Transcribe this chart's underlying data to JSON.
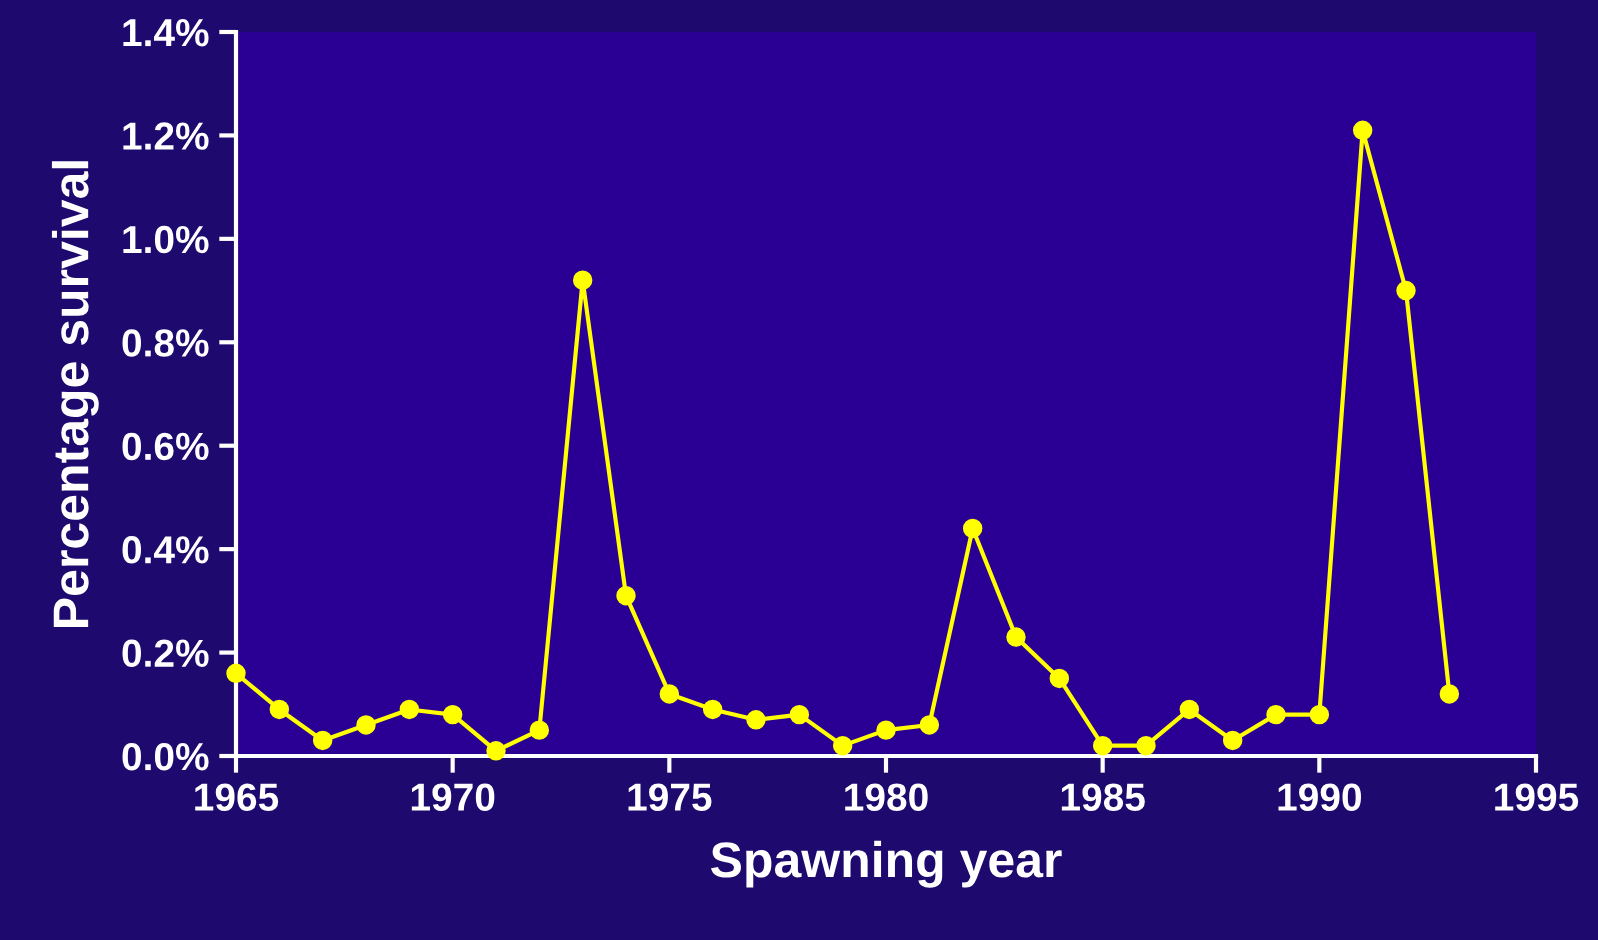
{
  "chart_data": {
    "type": "line",
    "xlabel": "Spawning year",
    "ylabel": "Percentage survival",
    "x": [
      1965,
      1966,
      1967,
      1968,
      1969,
      1970,
      1971,
      1972,
      1973,
      1974,
      1975,
      1976,
      1977,
      1978,
      1979,
      1980,
      1981,
      1982,
      1983,
      1984,
      1985,
      1986,
      1987,
      1988,
      1989,
      1990,
      1991,
      1992,
      1993
    ],
    "series": [
      {
        "color": "#ffff00",
        "values": [
          0.16,
          0.09,
          0.03,
          0.06,
          0.09,
          0.08,
          0.01,
          0.05,
          0.92,
          0.31,
          0.12,
          0.09,
          0.07,
          0.08,
          0.02,
          0.05,
          0.06,
          0.44,
          0.23,
          0.15,
          0.02,
          0.02,
          0.09,
          0.03,
          0.08,
          0.08,
          1.21,
          0.9,
          0.12
        ]
      }
    ],
    "xlim": [
      1965,
      1995
    ],
    "xticks": [
      1965,
      1970,
      1975,
      1980,
      1985,
      1990,
      1995
    ],
    "ylim": [
      0,
      1.4
    ],
    "yticks": [
      {
        "value": 0,
        "label": "0.0%"
      },
      {
        "value": 0.2,
        "label": "0.2%"
      },
      {
        "value": 0.4,
        "label": "0.4%"
      },
      {
        "value": 0.6,
        "label": "0.6%"
      },
      {
        "value": 0.8,
        "label": "0.8%"
      },
      {
        "value": 1.0,
        "label": "1.0%"
      },
      {
        "value": 1.2,
        "label": "1.2%"
      },
      {
        "value": 1.4,
        "label": "1.4%"
      }
    ],
    "marker": "circle",
    "line_style": "solid",
    "grid": false,
    "legend": false
  }
}
